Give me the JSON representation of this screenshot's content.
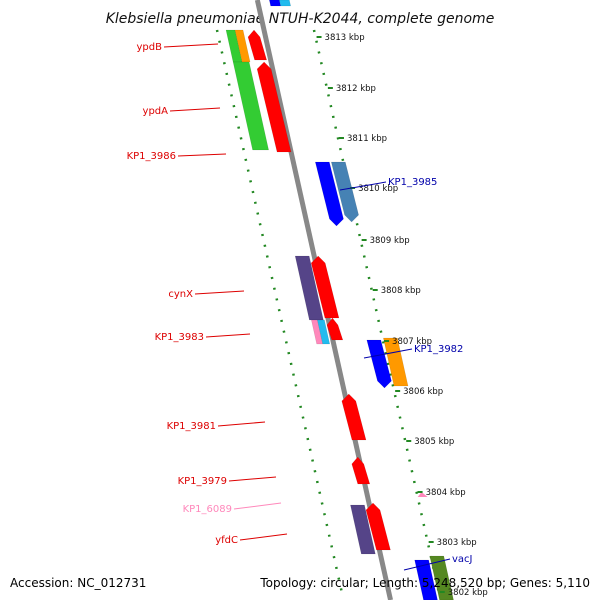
{
  "title": "Klebsiella pneumoniae NTUH-K2044, complete genome",
  "accession": "Accession: NC_012731",
  "summary": "Topology: circular; Length: 5,248,520 bp; Genes: 5,110",
  "ticks": [
    "3813 kbp",
    "3812 kbp",
    "3811 kbp",
    "3810 kbp",
    "3809 kbp",
    "3808 kbp",
    "3807 kbp",
    "3806 kbp",
    "3805 kbp",
    "3804 kbp",
    "3803 kbp",
    "3802 kbp"
  ],
  "left_labels": [
    {
      "text": "ypdB",
      "color": "#dd0000"
    },
    {
      "text": "ypdA",
      "color": "#dd0000"
    },
    {
      "text": "KP1_3986",
      "color": "#dd0000"
    },
    {
      "text": "cynX",
      "color": "#dd0000"
    },
    {
      "text": "KP1_3983",
      "color": "#dd0000"
    },
    {
      "text": "KP1_3981",
      "color": "#dd0000"
    },
    {
      "text": "KP1_3979",
      "color": "#dd0000"
    },
    {
      "text": "KP1_6089",
      "color": "#ff88bb"
    },
    {
      "text": "yfdC",
      "color": "#dd0000"
    }
  ],
  "right_labels": [
    {
      "text": "KP1_3985",
      "color": "#0000aa"
    },
    {
      "text": "KP1_3982",
      "color": "#0000aa"
    },
    {
      "text": "vacJ",
      "color": "#0000aa"
    }
  ],
  "colors": {
    "forward": "#ff0000",
    "reverse": "#0000ff",
    "backbone": "#888888",
    "dotted": "#228822",
    "green": "#33cc33",
    "orange": "#ff9900",
    "steel": "#4682b4",
    "purple": "#554488",
    "cyan": "#22bbee",
    "pink": "#ff88bb",
    "olive": "#558822"
  }
}
